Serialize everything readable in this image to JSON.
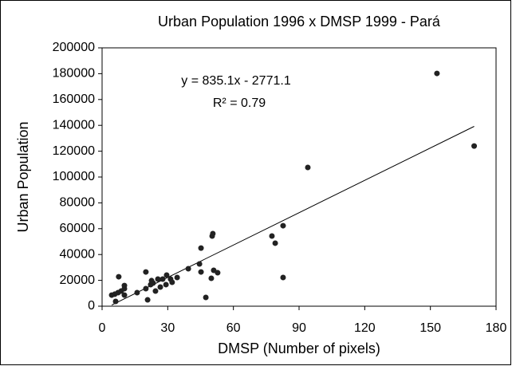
{
  "chart_data": {
    "type": "scatter",
    "title": "Urban Population 1996 x DMSP 1999 - Pará",
    "x_label": "DMSP (Number of pixels)",
    "y_label": "Urban Population",
    "color": "#222222",
    "xlim": [
      0,
      180
    ],
    "xticks": [
      0,
      30,
      60,
      90,
      120,
      150,
      180
    ],
    "ylim": [
      0,
      200000
    ],
    "yticks": [
      0,
      20000,
      40000,
      60000,
      80000,
      100000,
      120000,
      140000,
      160000,
      180000,
      200000
    ],
    "grid": false,
    "trendline": {
      "label": "y = 835.1x - 2771.1",
      "r2_label": "R² = 0.79",
      "slope": 835.1,
      "intercept": -2771.1
    },
    "x": [
      4.4,
      5.8,
      6.2,
      7.3,
      7.6,
      8.7,
      10.2,
      10.2,
      10.2,
      16,
      20,
      20,
      20.8,
      22.2,
      22.6,
      23.3,
      24.4,
      25.5,
      26.6,
      27.7,
      29.2,
      29.5,
      31.3,
      32,
      34.3,
      39.4,
      44.5,
      45.2,
      45.2,
      47.4,
      49.9,
      50.3,
      50.6,
      51,
      52.8,
      77.6,
      79.1,
      82.7,
      82.7,
      94,
      153,
      170
    ],
    "values": [
      8600,
      9300,
      3700,
      10500,
      22800,
      11700,
      16000,
      13600,
      8600,
      10500,
      26500,
      13600,
      4900,
      16700,
      19800,
      17900,
      11700,
      21000,
      14800,
      21000,
      16700,
      24100,
      21000,
      18500,
      22200,
      29000,
      32700,
      45000,
      26500,
      6800,
      21600,
      54300,
      56200,
      27800,
      25900,
      54300,
      48800,
      62300,
      22200,
      107400,
      180200,
      124000
    ]
  }
}
